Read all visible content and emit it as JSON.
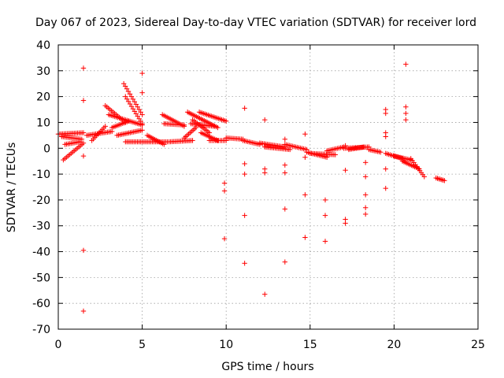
{
  "chart_data": {
    "type": "scatter",
    "title": "Day 067 of 2023, Sidereal Day-to-day VTEC variation (SDTVAR) for receiver lord",
    "xlabel": "GPS time / hours",
    "ylabel": "SDTVAR / TECUs",
    "xlim": [
      0,
      25
    ],
    "ylim": [
      -70,
      40
    ],
    "xticks": [
      0,
      5,
      10,
      15,
      20,
      25
    ],
    "yticks": [
      -70,
      -60,
      -50,
      -40,
      -30,
      -20,
      -10,
      0,
      10,
      20,
      30,
      40
    ],
    "grid": true,
    "marker": "+",
    "color": "#ff0000",
    "segments": [
      {
        "x": [
          0.0,
          1.5
        ],
        "y": [
          5.5,
          6.0
        ]
      },
      {
        "x": [
          0.2,
          1.4
        ],
        "y": [
          4.5,
          3.5
        ]
      },
      {
        "x": [
          0.3,
          1.5
        ],
        "y": [
          -4.5,
          2.0
        ]
      },
      {
        "x": [
          0.4,
          1.3
        ],
        "y": [
          1.5,
          2.5
        ]
      },
      {
        "x": [
          1.7,
          3.2
        ],
        "y": [
          5.0,
          6.5
        ]
      },
      {
        "x": [
          2.0,
          2.8
        ],
        "y": [
          3.0,
          8.5
        ]
      },
      {
        "x": [
          2.8,
          4.0
        ],
        "y": [
          16.5,
          10.0
        ]
      },
      {
        "x": [
          3.0,
          5.0
        ],
        "y": [
          13.0,
          9.0
        ]
      },
      {
        "x": [
          3.5,
          5.0
        ],
        "y": [
          5.0,
          7.0
        ]
      },
      {
        "x": [
          3.9,
          5.0
        ],
        "y": [
          25.0,
          13.0
        ]
      },
      {
        "x": [
          4.0,
          5.0
        ],
        "y": [
          20.0,
          9.5
        ]
      },
      {
        "x": [
          3.2,
          4.2
        ],
        "y": [
          8.0,
          10.5
        ]
      },
      {
        "x": [
          4.0,
          6.5
        ],
        "y": [
          2.5,
          2.5
        ]
      },
      {
        "x": [
          5.3,
          6.3
        ],
        "y": [
          5.0,
          1.5
        ]
      },
      {
        "x": [
          6.2,
          7.5
        ],
        "y": [
          13.0,
          8.5
        ]
      },
      {
        "x": [
          6.3,
          7.5
        ],
        "y": [
          9.5,
          9.0
        ]
      },
      {
        "x": [
          6.6,
          8.0
        ],
        "y": [
          2.5,
          3.0
        ]
      },
      {
        "x": [
          7.5,
          8.2
        ],
        "y": [
          4.0,
          8.0
        ]
      },
      {
        "x": [
          7.7,
          9.5
        ],
        "y": [
          14.0,
          8.0
        ]
      },
      {
        "x": [
          7.9,
          9.3
        ],
        "y": [
          9.5,
          8.5
        ]
      },
      {
        "x": [
          8.0,
          9.0
        ],
        "y": [
          11.0,
          6.0
        ]
      },
      {
        "x": [
          8.5,
          9.5
        ],
        "y": [
          6.0,
          3.0
        ]
      },
      {
        "x": [
          8.4,
          10.0
        ],
        "y": [
          14.0,
          10.5
        ]
      },
      {
        "x": [
          9.0,
          10.0
        ],
        "y": [
          3.0,
          3.0
        ]
      },
      {
        "x": [
          10.0,
          11.0
        ],
        "y": [
          4.0,
          3.5
        ]
      },
      {
        "x": [
          11.0,
          12.0
        ],
        "y": [
          3.0,
          1.5
        ]
      },
      {
        "x": [
          12.0,
          13.5
        ],
        "y": [
          2.0,
          0.5
        ]
      },
      {
        "x": [
          12.3,
          13.8
        ],
        "y": [
          0.5,
          -0.5
        ]
      },
      {
        "x": [
          13.5,
          14.8
        ],
        "y": [
          1.5,
          -0.5
        ]
      },
      {
        "x": [
          14.8,
          16.0
        ],
        "y": [
          -1.5,
          -3.5
        ]
      },
      {
        "x": [
          15.0,
          16.5
        ],
        "y": [
          -2.0,
          -2.5
        ]
      },
      {
        "x": [
          16.0,
          17.0
        ],
        "y": [
          -1.0,
          0.5
        ]
      },
      {
        "x": [
          17.0,
          18.5
        ],
        "y": [
          0.0,
          0.5
        ]
      },
      {
        "x": [
          17.3,
          18.2
        ],
        "y": [
          -0.5,
          0.5
        ]
      },
      {
        "x": [
          18.5,
          19.2
        ],
        "y": [
          -0.5,
          -1.5
        ]
      },
      {
        "x": [
          19.5,
          20.5
        ],
        "y": [
          -2.0,
          -4.0
        ]
      },
      {
        "x": [
          20.0,
          21.0
        ],
        "y": [
          -3.0,
          -4.5
        ]
      },
      {
        "x": [
          20.5,
          21.5
        ],
        "y": [
          -5.0,
          -8.0
        ]
      },
      {
        "x": [
          21.0,
          21.8
        ],
        "y": [
          -4.0,
          -11.0
        ]
      },
      {
        "x": [
          22.5,
          23.0
        ],
        "y": [
          -11.5,
          -12.5
        ]
      }
    ],
    "points": [
      {
        "x": 1.5,
        "y": 31.0
      },
      {
        "x": 1.5,
        "y": 18.5
      },
      {
        "x": 1.5,
        "y": -3.0
      },
      {
        "x": 1.5,
        "y": -39.5
      },
      {
        "x": 1.5,
        "y": -63.0
      },
      {
        "x": 5.0,
        "y": 29.0
      },
      {
        "x": 5.0,
        "y": 21.5
      },
      {
        "x": 9.9,
        "y": -13.5
      },
      {
        "x": 9.9,
        "y": -16.5
      },
      {
        "x": 9.9,
        "y": -35.0
      },
      {
        "x": 11.1,
        "y": 15.5
      },
      {
        "x": 11.1,
        "y": -6.0
      },
      {
        "x": 11.1,
        "y": -10.0
      },
      {
        "x": 11.1,
        "y": -26.0
      },
      {
        "x": 11.1,
        "y": -44.5
      },
      {
        "x": 12.3,
        "y": 11.0
      },
      {
        "x": 12.3,
        "y": -8.0
      },
      {
        "x": 12.3,
        "y": -9.5
      },
      {
        "x": 12.3,
        "y": -56.5
      },
      {
        "x": 13.5,
        "y": 3.5
      },
      {
        "x": 13.5,
        "y": -6.5
      },
      {
        "x": 13.5,
        "y": -9.5
      },
      {
        "x": 13.5,
        "y": -23.5
      },
      {
        "x": 13.5,
        "y": -44.0
      },
      {
        "x": 14.7,
        "y": 5.5
      },
      {
        "x": 14.7,
        "y": -3.5
      },
      {
        "x": 14.7,
        "y": -18.0
      },
      {
        "x": 14.7,
        "y": -34.5
      },
      {
        "x": 15.9,
        "y": -20.0
      },
      {
        "x": 15.9,
        "y": -26.0
      },
      {
        "x": 15.9,
        "y": -36.0
      },
      {
        "x": 17.1,
        "y": 1.0
      },
      {
        "x": 17.1,
        "y": -8.5
      },
      {
        "x": 17.1,
        "y": -27.5
      },
      {
        "x": 17.1,
        "y": -29.0
      },
      {
        "x": 18.3,
        "y": -5.5
      },
      {
        "x": 18.3,
        "y": -11.0
      },
      {
        "x": 18.3,
        "y": -18.0
      },
      {
        "x": 18.3,
        "y": -23.0
      },
      {
        "x": 18.3,
        "y": -25.5
      },
      {
        "x": 19.5,
        "y": 15.0
      },
      {
        "x": 19.5,
        "y": 13.5
      },
      {
        "x": 19.5,
        "y": 6.0
      },
      {
        "x": 19.5,
        "y": 4.5
      },
      {
        "x": 19.5,
        "y": -8.0
      },
      {
        "x": 19.5,
        "y": -15.5
      },
      {
        "x": 20.7,
        "y": 32.5
      },
      {
        "x": 20.7,
        "y": 16.0
      },
      {
        "x": 20.7,
        "y": 13.5
      },
      {
        "x": 20.7,
        "y": 11.0
      }
    ]
  }
}
